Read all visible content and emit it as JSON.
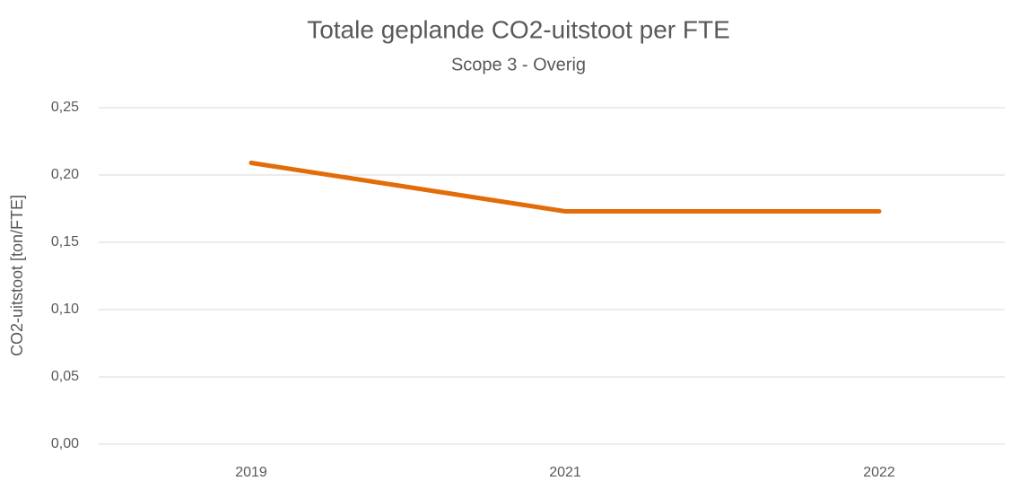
{
  "chart_data": {
    "type": "line",
    "title": "Totale geplande CO2-uitstoot per FTE",
    "subtitle": "Scope 3 - Overig",
    "y_label": "CO2-uitstoot [ton/FTE]",
    "categories": [
      "2019",
      "2021",
      "2022"
    ],
    "series": [
      {
        "name": "CO2-uitstoot",
        "color": "#e36c0a",
        "values": [
          0.209,
          0.173,
          0.173
        ]
      }
    ],
    "ylim": [
      0,
      0.25
    ],
    "yticks": [
      {
        "value": 0,
        "label": "0,00"
      },
      {
        "value": 0.05,
        "label": "0,05"
      },
      {
        "value": 0.1,
        "label": "0,10"
      },
      {
        "value": 0.15,
        "label": "0,15"
      },
      {
        "value": 0.2,
        "label": "0,20"
      },
      {
        "value": 0.25,
        "label": "0,25"
      }
    ],
    "grid": true
  }
}
